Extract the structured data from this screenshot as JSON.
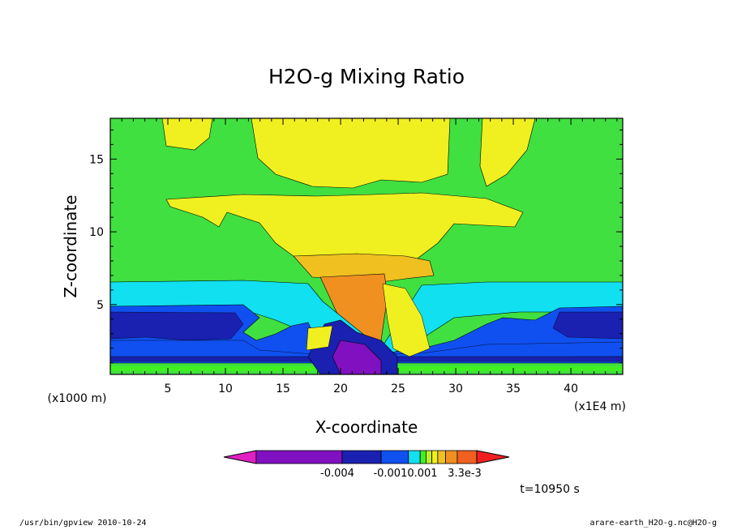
{
  "chart_data": {
    "type": "heatmap",
    "title": "H2O-g Mixing Ratio",
    "xlabel": "X-coordinate",
    "ylabel": "Z-coordinate",
    "x_unit_left": "(x1000 m)",
    "x_unit_right": "(x1E4 m)",
    "xlim": [
      0,
      44.5
    ],
    "ylim": [
      0.2,
      17.8
    ],
    "x_ticks": [
      "5",
      "10",
      "15",
      "20",
      "25",
      "30",
      "35",
      "40"
    ],
    "y_ticks": [
      "5",
      "10",
      "15"
    ],
    "colorbar": {
      "colors": [
        "#e020c0",
        "#8010c0",
        "#1a20b0",
        "#1050f0",
        "#10e0f0",
        "#40f020",
        "#c0f020",
        "#f0f020",
        "#f0c020",
        "#f09020",
        "#f06020",
        "#f02020"
      ],
      "labels": [
        "-0.004",
        "-0.0010.001",
        "3.3e-3"
      ]
    },
    "time_label": "t=10950 s"
  },
  "footer": {
    "left": "/usr/bin/gpview   2010-10-24",
    "right": "arare-earth_H2O-g.nc@H2O-g"
  }
}
